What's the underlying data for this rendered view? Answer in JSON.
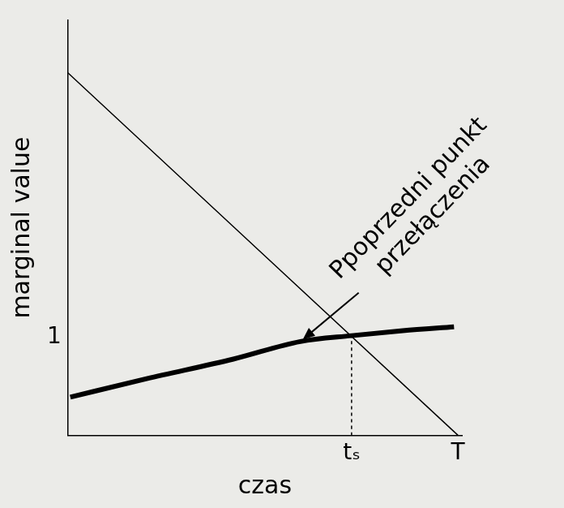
{
  "chart_data": {
    "type": "line",
    "x_label": "czas",
    "y_label": "marginal value",
    "xlim": [
      0,
      1.0
    ],
    "ylim": [
      0,
      4.25
    ],
    "xticks": [
      {
        "value": 0.72,
        "label": "tₛ"
      },
      {
        "value": 0.99,
        "label": "T"
      }
    ],
    "yticks": [
      1
    ],
    "grid": false,
    "series": [
      {
        "color": "#000000",
        "line_style": "solid",
        "x": [
          0,
          0.99
        ],
        "values": [
          3.71,
          0
        ]
      },
      {
        "color": "#000000",
        "line_style": "thick",
        "x": [
          0.006,
          0.2,
          0.42,
          0.59,
          0.72,
          0.85,
          0.98
        ],
        "values": [
          0.39,
          0.58,
          0.78,
          0.96,
          1.02,
          1.07,
          1.11
        ]
      },
      {
        "color": "#000000",
        "line_style": "dashed",
        "x": [
          0.72,
          0.72
        ],
        "values": [
          0,
          1.02
        ]
      }
    ],
    "annotations": [
      {
        "text": "Ppoprzedni punkt\nprzełączenia",
        "x": 0.59,
        "y": 0.96
      }
    ]
  }
}
